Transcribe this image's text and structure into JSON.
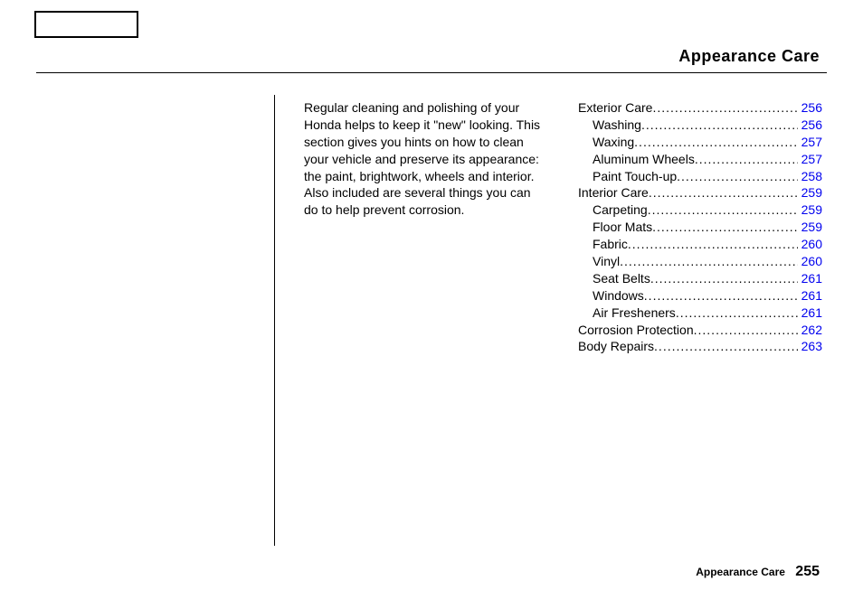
{
  "title": "Appearance Care",
  "intro": "Regular cleaning and polishing of your Honda helps to keep it \"new\" looking. This section gives you hints on how to clean your vehicle and preserve its appearance: the paint, brightwork, wheels and interior. Also included are several things you can do to help prevent corrosion.",
  "toc": [
    {
      "label": "Exterior Care",
      "page": "256",
      "indent": false
    },
    {
      "label": "Washing",
      "page": "256",
      "indent": true
    },
    {
      "label": "Waxing",
      "page": "257",
      "indent": true
    },
    {
      "label": "Aluminum Wheels",
      "page": "257",
      "indent": true
    },
    {
      "label": "Paint Touch-up",
      "page": "258",
      "indent": true
    },
    {
      "label": "Interior Care",
      "page": "259",
      "indent": false
    },
    {
      "label": "Carpeting",
      "page": "259",
      "indent": true
    },
    {
      "label": "Floor Mats",
      "page": "259",
      "indent": true
    },
    {
      "label": "Fabric",
      "page": "260",
      "indent": true
    },
    {
      "label": "Vinyl",
      "page": "260",
      "indent": true
    },
    {
      "label": "Seat Belts",
      "page": "261",
      "indent": true
    },
    {
      "label": "Windows",
      "page": "261",
      "indent": true
    },
    {
      "label": "Air Fresheners",
      "page": "261",
      "indent": true
    },
    {
      "label": "Corrosion Protection",
      "page": "262",
      "indent": false
    },
    {
      "label": "Body Repairs",
      "page": "263",
      "indent": false
    }
  ],
  "footer": {
    "section": "Appearance Care",
    "page": "255"
  },
  "colors": {
    "link": "#0000ee",
    "text": "#000000",
    "bg": "#ffffff"
  }
}
